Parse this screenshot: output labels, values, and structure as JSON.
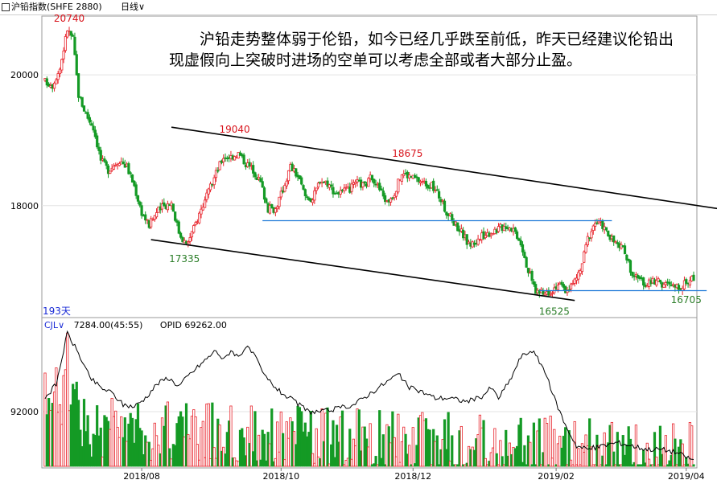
{
  "header": {
    "instrument": "沪铅指数(SHFE 2880)",
    "period": "日线",
    "period_caret": "∨"
  },
  "annotation": "沪铅走势整体弱于伦铅，如今已经几乎跌至前低，昨天已经建议伦铅出现虚假向上突破时进场的空单可以考虑全部或者大部分止盈。",
  "days_label": "193天",
  "volume_panel": {
    "indicator": "CJL",
    "caret": "∨",
    "volume_text": "7284.00(45:55)",
    "opi_label": "OPID",
    "opi_value": "69262.00"
  },
  "colors": {
    "up": "#e8242c",
    "down": "#149a25",
    "line": "#000000",
    "level": "#1f7ad8",
    "peak_red": "#d8141c",
    "trough_green": "#2a7d27"
  },
  "chart_data": {
    "type": "candlestick",
    "y_ticks": [
      "20000",
      "18000"
    ],
    "ylim": [
      16300,
      20900
    ],
    "x_ticks": [
      "2018/08",
      "2018/10",
      "2018/12",
      "2019/02",
      "2019/04"
    ],
    "annotations": [
      {
        "label": "20740",
        "value": 20740,
        "kind": "high",
        "index": 13
      },
      {
        "label": "19040",
        "value": 19040,
        "kind": "high",
        "index": 102
      },
      {
        "label": "18675",
        "value": 18675,
        "kind": "high",
        "index": 195
      },
      {
        "label": "17335",
        "value": 17335,
        "kind": "low",
        "index": 75
      },
      {
        "label": "16525",
        "value": 16525,
        "kind": "low",
        "index": 274
      },
      {
        "label": "16705",
        "value": 16705,
        "kind": "low",
        "index": 345
      }
    ],
    "trendlines": [
      {
        "from": [
          68,
          19200
        ],
        "to": [
          375,
          17900
        ]
      },
      {
        "from": [
          57,
          17480
        ],
        "to": [
          285,
          16550
        ]
      }
    ],
    "levels": [
      {
        "value": 17770,
        "from": 117,
        "to": 305
      },
      {
        "value": 16700,
        "from": 266,
        "to": 356
      }
    ],
    "volume_tick": "92000",
    "volume_ylim": [
      60000,
      140000
    ],
    "price_anchors": [
      [
        0,
        19900
      ],
      [
        4,
        19850
      ],
      [
        8,
        20100
      ],
      [
        12,
        20700
      ],
      [
        15,
        20550
      ],
      [
        18,
        19700
      ],
      [
        22,
        19400
      ],
      [
        26,
        19200
      ],
      [
        30,
        18700
      ],
      [
        34,
        18550
      ],
      [
        40,
        18700
      ],
      [
        44,
        18600
      ],
      [
        48,
        18300
      ],
      [
        52,
        17900
      ],
      [
        56,
        17700
      ],
      [
        60,
        17900
      ],
      [
        64,
        18000
      ],
      [
        68,
        18050
      ],
      [
        72,
        17600
      ],
      [
        76,
        17400
      ],
      [
        80,
        17650
      ],
      [
        84,
        17950
      ],
      [
        88,
        18200
      ],
      [
        92,
        18500
      ],
      [
        96,
        18750
      ],
      [
        100,
        18750
      ],
      [
        104,
        18800
      ],
      [
        108,
        18650
      ],
      [
        112,
        18550
      ],
      [
        116,
        18350
      ],
      [
        120,
        17950
      ],
      [
        124,
        17950
      ],
      [
        128,
        18250
      ],
      [
        132,
        18600
      ],
      [
        136,
        18450
      ],
      [
        140,
        18150
      ],
      [
        144,
        18100
      ],
      [
        148,
        18400
      ],
      [
        152,
        18350
      ],
      [
        156,
        18200
      ],
      [
        160,
        18200
      ],
      [
        164,
        18250
      ],
      [
        168,
        18350
      ],
      [
        172,
        18300
      ],
      [
        176,
        18450
      ],
      [
        180,
        18250
      ],
      [
        184,
        18050
      ],
      [
        188,
        18200
      ],
      [
        192,
        18500
      ],
      [
        196,
        18450
      ],
      [
        200,
        18400
      ],
      [
        204,
        18350
      ],
      [
        208,
        18300
      ],
      [
        212,
        18150
      ],
      [
        216,
        17900
      ],
      [
        220,
        17750
      ],
      [
        224,
        17600
      ],
      [
        228,
        17400
      ],
      [
        232,
        17450
      ],
      [
        236,
        17550
      ],
      [
        240,
        17600
      ],
      [
        244,
        17650
      ],
      [
        248,
        17700
      ],
      [
        252,
        17650
      ],
      [
        256,
        17450
      ],
      [
        260,
        17000
      ],
      [
        264,
        16700
      ],
      [
        268,
        16650
      ],
      [
        272,
        16700
      ],
      [
        276,
        16800
      ],
      [
        280,
        16700
      ],
      [
        284,
        16800
      ],
      [
        288,
        17000
      ],
      [
        292,
        17500
      ],
      [
        296,
        17750
      ],
      [
        300,
        17700
      ],
      [
        304,
        17500
      ],
      [
        308,
        17400
      ],
      [
        312,
        17300
      ],
      [
        316,
        16950
      ],
      [
        320,
        16850
      ],
      [
        324,
        16800
      ],
      [
        328,
        16850
      ],
      [
        332,
        16800
      ],
      [
        336,
        16780
      ],
      [
        340,
        16750
      ],
      [
        344,
        16800
      ],
      [
        348,
        16900
      ]
    ],
    "oi_anchors": [
      [
        0,
        100000
      ],
      [
        6,
        108000
      ],
      [
        12,
        138000
      ],
      [
        18,
        126000
      ],
      [
        24,
        112000
      ],
      [
        30,
        106000
      ],
      [
        36,
        103000
      ],
      [
        42,
        96000
      ],
      [
        48,
        95000
      ],
      [
        54,
        100000
      ],
      [
        60,
        108000
      ],
      [
        66,
        112000
      ],
      [
        72,
        107000
      ],
      [
        78,
        114000
      ],
      [
        86,
        122000
      ],
      [
        92,
        128000
      ],
      [
        96,
        122000
      ],
      [
        100,
        128000
      ],
      [
        104,
        124000
      ],
      [
        108,
        130000
      ],
      [
        112,
        126000
      ],
      [
        118,
        113000
      ],
      [
        126,
        104000
      ],
      [
        134,
        98000
      ],
      [
        142,
        92000
      ],
      [
        150,
        92000
      ],
      [
        158,
        94000
      ],
      [
        166,
        96000
      ],
      [
        174,
        102000
      ],
      [
        182,
        108000
      ],
      [
        190,
        114000
      ],
      [
        196,
        106000
      ],
      [
        202,
        104000
      ],
      [
        210,
        100000
      ],
      [
        218,
        100000
      ],
      [
        226,
        98000
      ],
      [
        234,
        100000
      ],
      [
        240,
        106000
      ],
      [
        244,
        100000
      ],
      [
        250,
        110000
      ],
      [
        256,
        124000
      ],
      [
        262,
        128000
      ],
      [
        268,
        118000
      ],
      [
        274,
        100000
      ],
      [
        280,
        84000
      ],
      [
        286,
        72000
      ],
      [
        292,
        70000
      ],
      [
        300,
        72000
      ],
      [
        308,
        74000
      ],
      [
        316,
        72000
      ],
      [
        324,
        70000
      ],
      [
        332,
        70000
      ],
      [
        340,
        68000
      ],
      [
        348,
        64000
      ]
    ]
  }
}
